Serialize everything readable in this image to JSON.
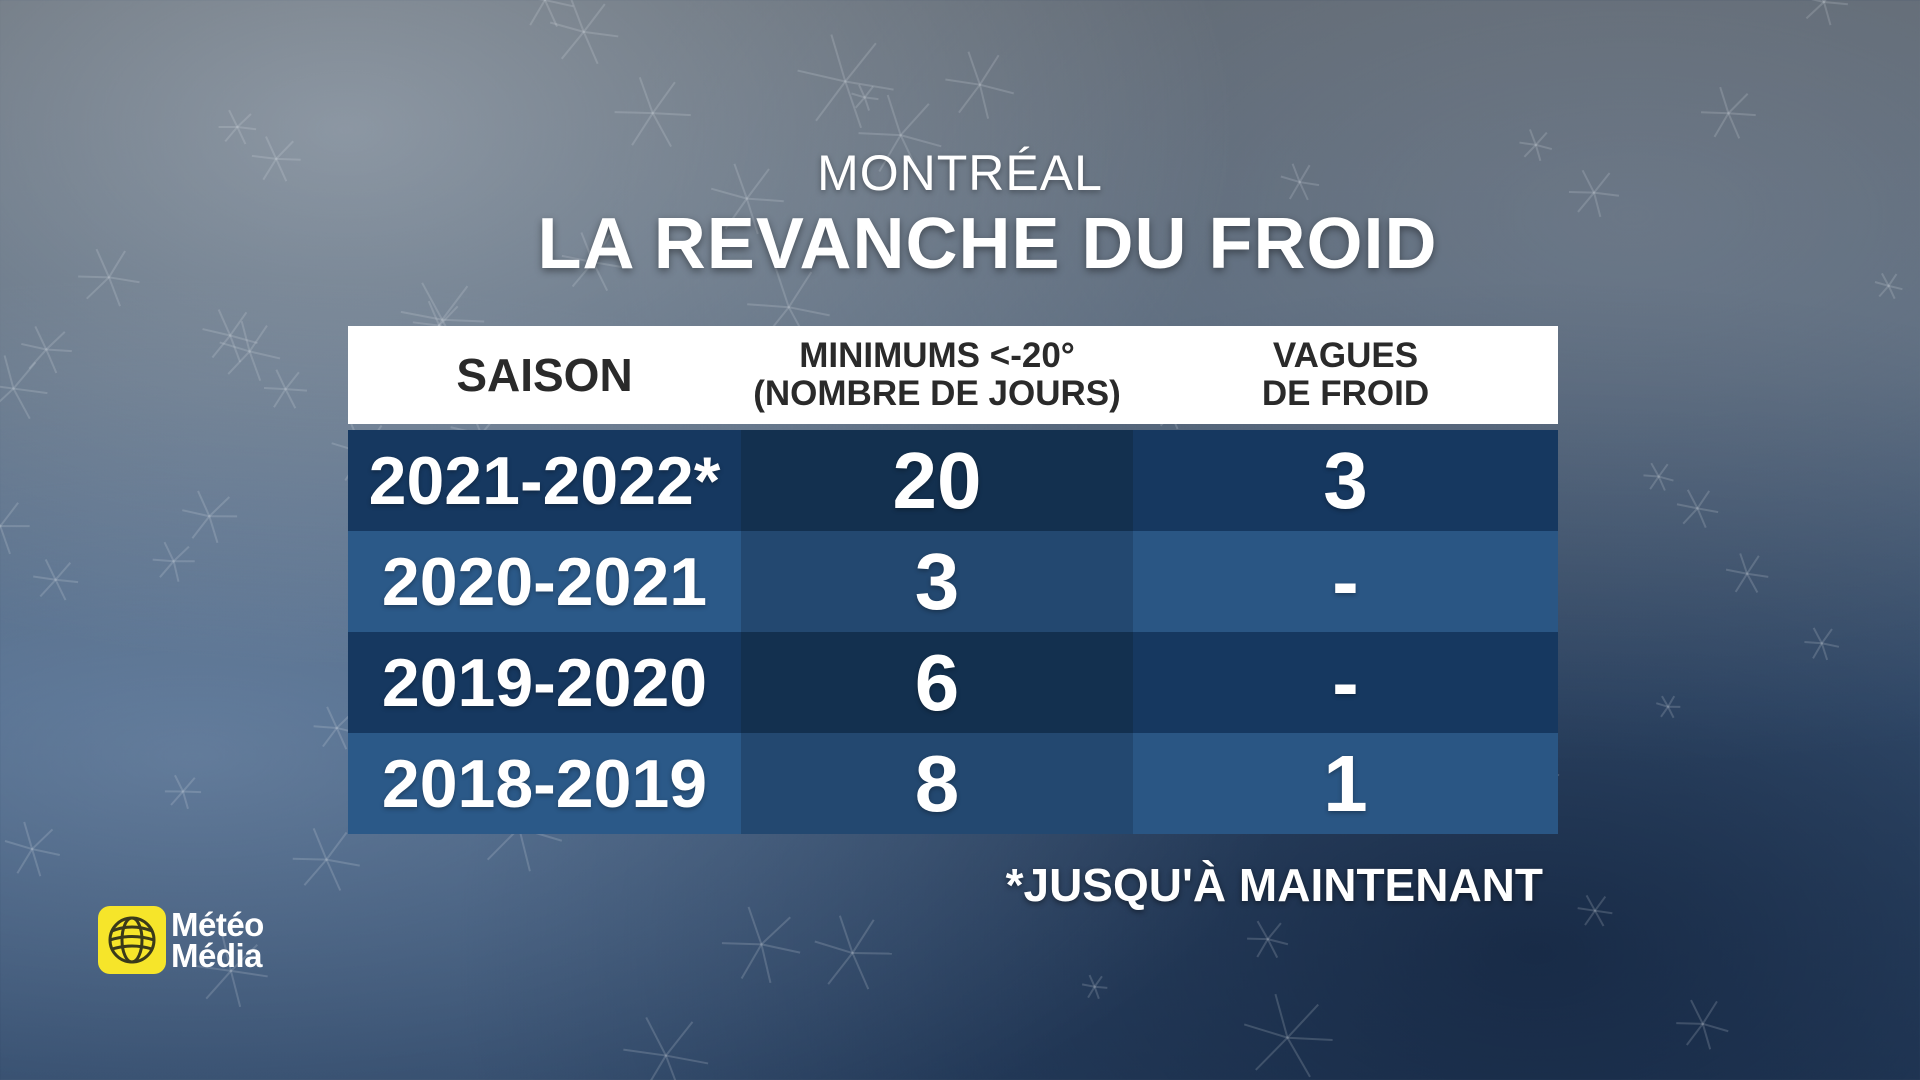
{
  "header": {
    "subtitle": "MONTRÉAL",
    "title": "LA REVANCHE DU FROID"
  },
  "chart_data": {
    "type": "table",
    "columns": [
      "SAISON",
      "MINIMUMS <-20°\n(NOMBRE DE JOURS)",
      "VAGUES\nDE FROID"
    ],
    "rows": [
      [
        "2021-2022*",
        "20",
        "3"
      ],
      [
        "2020-2021",
        "3",
        "-"
      ],
      [
        "2019-2020",
        "6",
        "-"
      ],
      [
        "2018-2019",
        "8",
        "1"
      ]
    ]
  },
  "footnote": "*JUSQU'À MAINTENANT",
  "logo": {
    "line1": "Météo",
    "line2": "Média",
    "icon": "globe-icon"
  },
  "colors": {
    "header_bg": "#ffffff",
    "row_dark": [
      "#163860",
      "#13304f",
      "#183b63"
    ],
    "row_light": [
      "#2a5684",
      "#234870",
      "#2b5988"
    ],
    "logo_yellow": "#f6e52a"
  }
}
